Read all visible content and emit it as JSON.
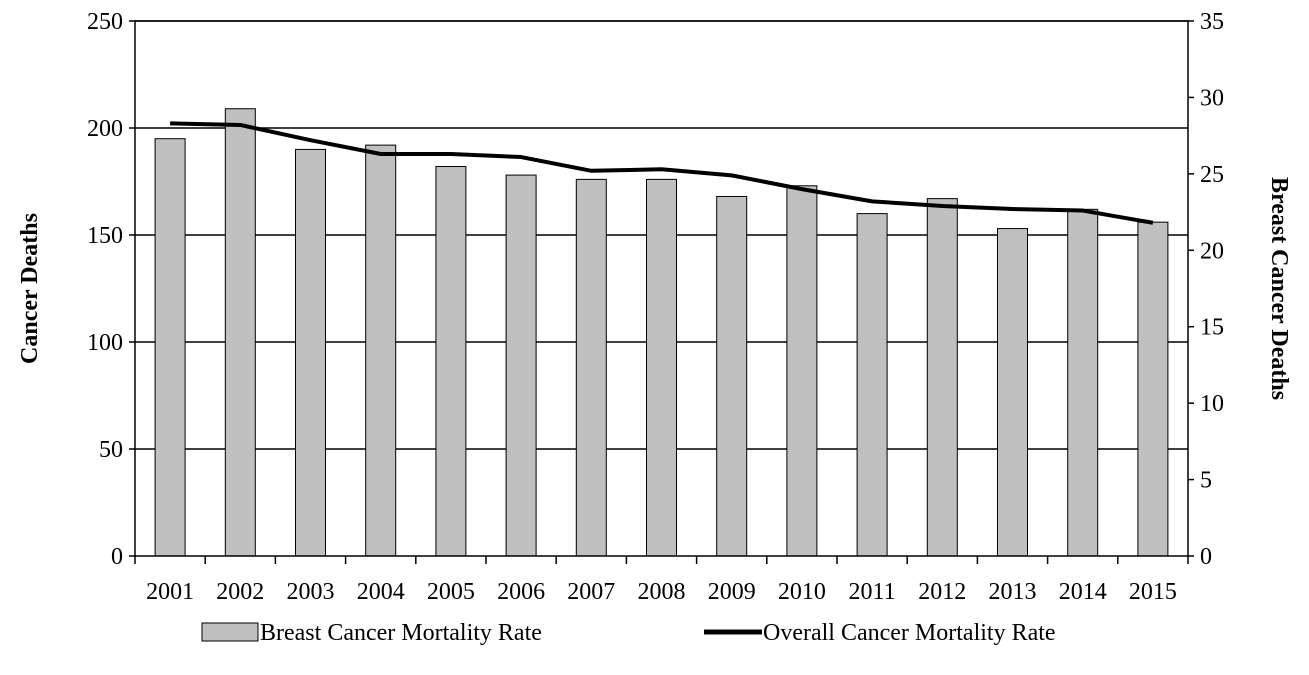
{
  "chart_data": {
    "type": "bar",
    "categories": [
      "2001",
      "2002",
      "2003",
      "2004",
      "2005",
      "2006",
      "2007",
      "2008",
      "2009",
      "2010",
      "2011",
      "2012",
      "2013",
      "2014",
      "2015"
    ],
    "series": [
      {
        "name": "Breast Cancer Mortality Rate",
        "type": "bar",
        "axis": "left",
        "color": "#c0c0c0",
        "values": [
          195,
          209,
          190,
          192,
          182,
          178,
          176,
          176,
          168,
          173,
          160,
          167,
          153,
          162,
          156
        ]
      },
      {
        "name": "Overall Cancer Mortality Rate",
        "type": "line",
        "axis": "right",
        "color": "#000000",
        "values": [
          28.3,
          28.2,
          27.2,
          26.3,
          26.3,
          26.1,
          25.2,
          25.3,
          24.9,
          24.0,
          23.2,
          22.9,
          22.7,
          22.6,
          21.8
        ]
      }
    ],
    "ylabel": "Cancer Deaths",
    "y2label": "Breast Cancer Deaths",
    "ylim": [
      0,
      250
    ],
    "y2lim": [
      0,
      35
    ],
    "yticks": [
      0,
      50,
      100,
      150,
      200,
      250
    ],
    "y2ticks": [
      0,
      5,
      10,
      15,
      20,
      25,
      30,
      35
    ],
    "grid": true,
    "legend_position": "bottom"
  }
}
